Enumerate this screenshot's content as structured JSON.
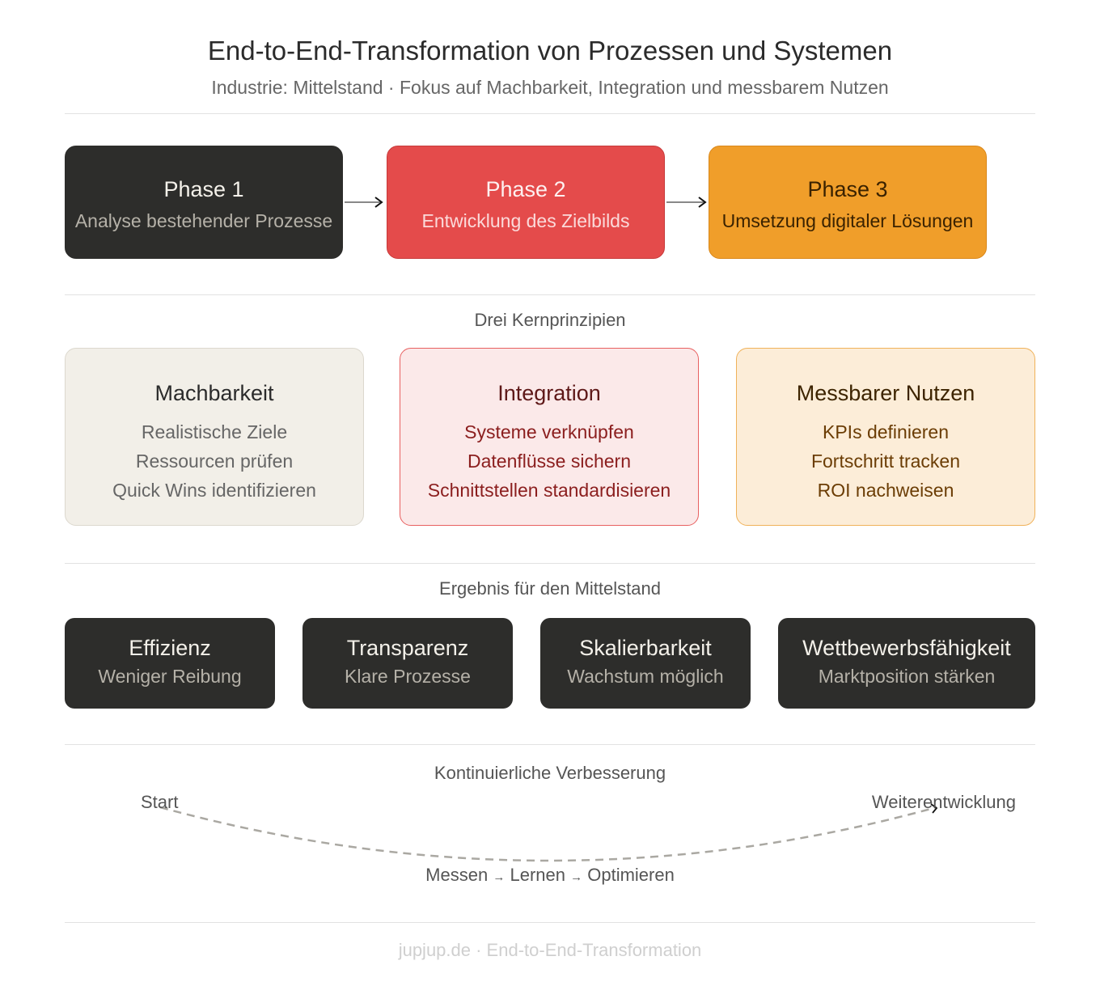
{
  "header": {
    "title": "End-to-End-Transformation von Prozessen und Systemen",
    "subtitle": "Industrie: Mittelstand · Fokus auf Machbarkeit, Integration und messbarem Nutzen"
  },
  "phases": [
    {
      "title": "Phase 1",
      "subtitle": "Analyse bestehender Prozesse",
      "bg": "#2d2d2b",
      "border": "#2d2d2b",
      "title_color": "#f4f1ea",
      "sub_color": "#b5b1a8"
    },
    {
      "title": "Phase 2",
      "subtitle": "Entwicklung des Zielbilds",
      "bg": "#e44b4b",
      "border": "#c73a3a",
      "title_color": "#fdf0f0",
      "sub_color": "#fbdada"
    },
    {
      "title": "Phase 3",
      "subtitle": "Umsetzung digitaler Lösungen",
      "bg": "#f09e2a",
      "border": "#d9871a",
      "title_color": "#3a2200",
      "sub_color": "#3a2200"
    }
  ],
  "principles": {
    "heading": "Drei Kernprinzipien",
    "cards": [
      {
        "title": "Machbarkeit",
        "items": [
          "Realistische Ziele",
          "Ressourcen prüfen",
          "Quick Wins identifizieren"
        ],
        "bg": "#f2efe8",
        "border": "#dcd8ce",
        "title_color": "#2b2b2b",
        "item_color": "#666"
      },
      {
        "title": "Integration",
        "items": [
          "Systeme verknüpfen",
          "Datenflüsse sichern",
          "Schnittstellen standardisieren"
        ],
        "bg": "#fbe9e9",
        "border": "#e86060",
        "title_color": "#5e1818",
        "item_color": "#8b1e1e"
      },
      {
        "title": "Messbarer Nutzen",
        "items": [
          "KPIs definieren",
          "Fortschritt tracken",
          "ROI nachweisen"
        ],
        "bg": "#fcedd8",
        "border": "#f0b25a",
        "title_color": "#3d2400",
        "item_color": "#6b3d05"
      }
    ]
  },
  "results": {
    "heading": "Ergebnis für den Mittelstand",
    "items": [
      {
        "title": "Effizienz",
        "subtitle": "Weniger Reibung"
      },
      {
        "title": "Transparenz",
        "subtitle": "Klare Prozesse"
      },
      {
        "title": "Skalierbarkeit",
        "subtitle": "Wachstum möglich"
      },
      {
        "title": "Wettbewerbsfähigkeit",
        "subtitle": "Marktposition stärken"
      }
    ]
  },
  "loop": {
    "heading": "Kontinuierliche Verbesserung",
    "start": "Start",
    "end": "Weiterentwicklung",
    "steps": [
      "Messen",
      "Lernen",
      "Optimieren"
    ],
    "separator": "→"
  },
  "footer": {
    "text": "jupjup.de · End-to-End-Transformation"
  }
}
